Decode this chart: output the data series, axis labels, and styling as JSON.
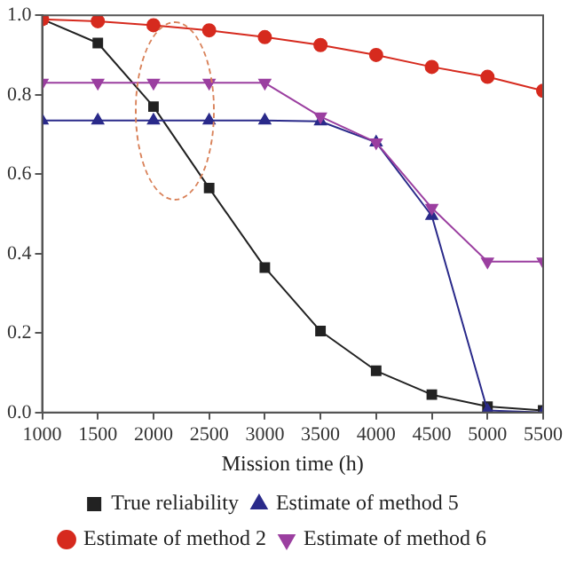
{
  "chart_data": {
    "type": "line",
    "xlabel": "Mission time (h)",
    "x": [
      1000,
      1500,
      2000,
      2500,
      3000,
      3500,
      4000,
      4500,
      5000,
      5500
    ],
    "xlim": [
      1000,
      5500
    ],
    "xticks": [
      1000,
      1500,
      2000,
      2500,
      3000,
      3500,
      4000,
      4500,
      5000,
      5500
    ],
    "ylim": [
      0,
      1
    ],
    "yticks": [
      {
        "value": 0,
        "label": "0.0"
      },
      0.2,
      0.4,
      0.6,
      0.8,
      {
        "value": 1,
        "label": "1.0"
      }
    ],
    "grid": false,
    "legend": "bottom",
    "line_style": "solid",
    "series": [
      {
        "name": "True reliability",
        "color": "#222222",
        "marker": "square",
        "values": [
          0.99,
          0.93,
          0.77,
          0.565,
          0.365,
          0.205,
          0.105,
          0.045,
          0.015,
          0.005
        ]
      },
      {
        "name": "Estimate of method 2",
        "color": "#d62a1e",
        "marker": "circle",
        "values": [
          0.99,
          0.985,
          0.975,
          0.962,
          0.945,
          0.925,
          0.9,
          0.87,
          0.845,
          0.81
        ]
      },
      {
        "name": "Estimate of method 5",
        "color": "#2a2a8a",
        "marker": "triangle",
        "values": [
          0.735,
          0.735,
          0.735,
          0.735,
          0.735,
          0.733,
          0.68,
          0.495,
          0.005,
          0
        ]
      },
      {
        "name": "Estimate of method 6",
        "color": "#9b3fa0",
        "marker": "triangle-down",
        "values": [
          0.83,
          0.83,
          0.83,
          0.83,
          0.83,
          0.745,
          0.68,
          0.515,
          0.38,
          0.38
        ]
      }
    ]
  }
}
